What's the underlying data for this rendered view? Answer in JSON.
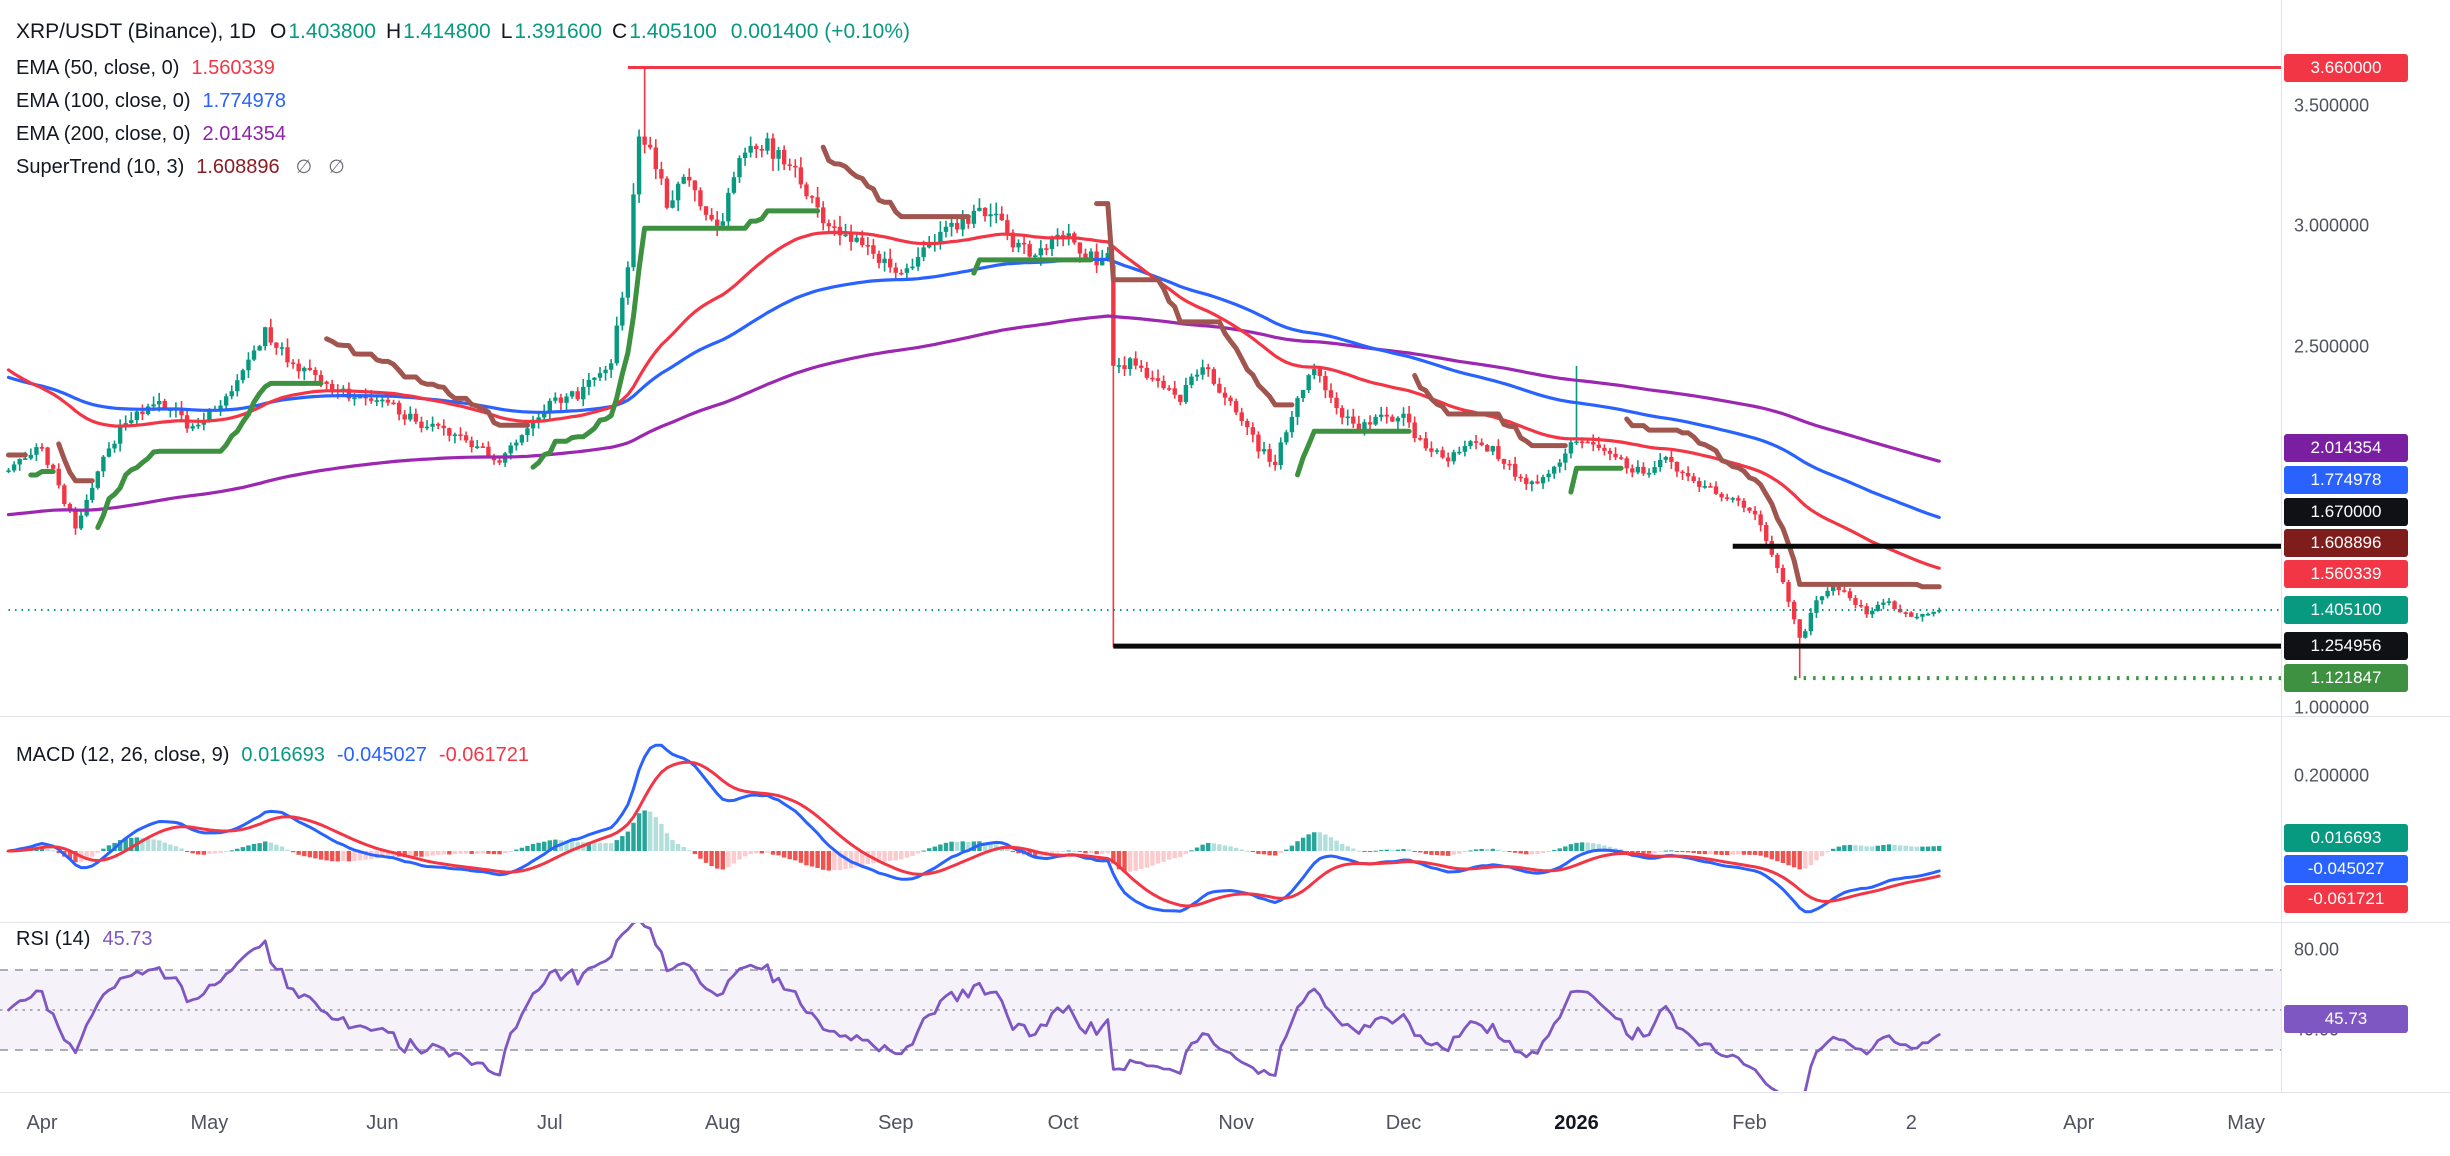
{
  "header": {
    "symbol": "XRP/USDT (Binance), 1D",
    "o_label": "O",
    "o_value": "1.403800",
    "h_label": "H",
    "h_value": "1.414800",
    "l_label": "L",
    "l_value": "1.391600",
    "c_label": "C",
    "c_value": "1.405100",
    "change": "0.001400 (+0.10%)",
    "value_color": "#089981"
  },
  "legend": [
    {
      "label": "EMA (50, close, 0)",
      "value": "1.560339",
      "color": "#f23645"
    },
    {
      "label": "EMA (100, close, 0)",
      "value": "1.774978",
      "color": "#2962ff"
    },
    {
      "label": "EMA (200, close, 0)",
      "value": "2.014354",
      "color": "#8e24aa"
    },
    {
      "label": "SuperTrend (10, 3)",
      "value": "1.608896",
      "color": "#8b1d24",
      "icons": [
        "∅",
        "∅"
      ]
    }
  ],
  "macd_header": {
    "label": "MACD (12, 26, close, 9)",
    "values": [
      "0.016693",
      "-0.045027",
      "-0.061721"
    ],
    "colors": [
      "#089981",
      "#2962ff",
      "#f23645"
    ]
  },
  "rsi_header": {
    "label": "RSI (14)",
    "value": "45.73",
    "color": "#7e57c2"
  },
  "axis": {
    "price_labels": [
      "3.500000",
      "3.000000",
      "2.500000",
      "1.000000"
    ],
    "macd_labels": [
      "0.200000"
    ],
    "rsi_labels": [
      "80.00",
      "40.00"
    ]
  },
  "badges": {
    "price": [
      {
        "text": "3.660000",
        "bg": "#f23645"
      },
      {
        "text": "2.014354",
        "bg": "#7b1fa2"
      },
      {
        "text": "1.774978",
        "bg": "#2962ff"
      },
      {
        "text": "1.670000",
        "bg": "#101114"
      },
      {
        "text": "1.608896",
        "bg": "#7f1d1d"
      },
      {
        "text": "1.560339",
        "bg": "#f23645"
      },
      {
        "text": "1.405100",
        "bg": "#089981"
      },
      {
        "text": "1.254956",
        "bg": "#101114"
      },
      {
        "text": "1.121847",
        "bg": "#3d9140"
      }
    ],
    "macd": [
      {
        "text": "0.016693",
        "bg": "#089981"
      },
      {
        "text": "-0.045027",
        "bg": "#2962ff"
      },
      {
        "text": "-0.061721",
        "bg": "#f23645"
      }
    ],
    "rsi": [
      {
        "text": "45.73",
        "bg": "#7e57c2"
      }
    ]
  },
  "colors": {
    "up": "#089981",
    "down": "#f23645",
    "ema50": "#f23645",
    "ema100": "#2962ff",
    "ema200": "#9c27b0",
    "supertrend_down": "#a0564f",
    "supertrend_up": "#3d9140",
    "macd_line": "#2962ff",
    "signal_line": "#f23645",
    "hist_pos": "#26a69a",
    "hist_pos_faded": "#b2dfdb",
    "hist_neg": "#ef5350",
    "hist_neg_faded": "#fccbcd",
    "rsi": "#7e57c2",
    "rsi_band_line": "#9194a3",
    "last_price": "#089981"
  },
  "chart_data": {
    "type": "candlestick",
    "symbol": "XRP/USDT",
    "exchange": "Binance",
    "interval": "1D",
    "last_candle": {
      "o": 1.4038,
      "h": 1.4148,
      "l": 1.3916,
      "c": 1.4051,
      "change": 0.0014,
      "change_pct": 0.1
    },
    "y_range": [
      1.0,
      3.75
    ],
    "x_axis": {
      "labels": [
        {
          "text": "Apr",
          "day": 0
        },
        {
          "text": "May",
          "day": 30
        },
        {
          "text": "Jun",
          "day": 61
        },
        {
          "text": "Jul",
          "day": 91
        },
        {
          "text": "Aug",
          "day": 122
        },
        {
          "text": "Sep",
          "day": 153
        },
        {
          "text": "Oct",
          "day": 183
        },
        {
          "text": "Nov",
          "day": 214
        },
        {
          "text": "Dec",
          "day": 244
        },
        {
          "text": "2026",
          "day": 275,
          "bold": true
        },
        {
          "text": "Feb",
          "day": 306
        },
        {
          "text": "2",
          "day": 335
        },
        {
          "text": "Apr",
          "day": 365
        },
        {
          "text": "May",
          "day": 395
        }
      ]
    },
    "price_keyframes": [
      [
        -6,
        1.98
      ],
      [
        -3,
        2.05
      ],
      [
        0,
        2.08
      ],
      [
        3,
        1.92
      ],
      [
        6,
        1.74
      ],
      [
        10,
        1.98
      ],
      [
        14,
        2.16
      ],
      [
        21,
        2.28
      ],
      [
        27,
        2.16
      ],
      [
        33,
        2.27
      ],
      [
        40,
        2.56
      ],
      [
        44,
        2.46
      ],
      [
        49,
        2.37
      ],
      [
        55,
        2.3
      ],
      [
        61,
        2.28
      ],
      [
        68,
        2.17
      ],
      [
        75,
        2.12
      ],
      [
        82,
        2.02
      ],
      [
        88,
        2.17
      ],
      [
        91,
        2.27
      ],
      [
        97,
        2.31
      ],
      [
        102,
        2.44
      ],
      [
        105,
        2.85
      ],
      [
        107,
        3.38
      ],
      [
        109,
        3.32
      ],
      [
        112,
        3.1
      ],
      [
        115,
        3.22
      ],
      [
        118,
        3.08
      ],
      [
        121,
        2.97
      ],
      [
        125,
        3.27
      ],
      [
        130,
        3.34
      ],
      [
        135,
        3.22
      ],
      [
        140,
        3.03
      ],
      [
        145,
        2.94
      ],
      [
        150,
        2.86
      ],
      [
        155,
        2.82
      ],
      [
        160,
        2.94
      ],
      [
        165,
        3.01
      ],
      [
        170,
        3.07
      ],
      [
        174,
        2.92
      ],
      [
        178,
        2.88
      ],
      [
        183,
        2.97
      ],
      [
        188,
        2.87
      ],
      [
        191,
        2.86
      ],
      [
        192,
        2.42
      ],
      [
        196,
        2.43
      ],
      [
        200,
        2.35
      ],
      [
        204,
        2.28
      ],
      [
        208,
        2.42
      ],
      [
        211,
        2.32
      ],
      [
        214,
        2.22
      ],
      [
        218,
        2.08
      ],
      [
        221,
        2.02
      ],
      [
        225,
        2.27
      ],
      [
        228,
        2.42
      ],
      [
        232,
        2.25
      ],
      [
        236,
        2.15
      ],
      [
        240,
        2.22
      ],
      [
        244,
        2.2
      ],
      [
        248,
        2.08
      ],
      [
        252,
        2.02
      ],
      [
        256,
        2.1
      ],
      [
        260,
        2.07
      ],
      [
        264,
        1.98
      ],
      [
        268,
        1.92
      ],
      [
        272,
        2.03
      ],
      [
        275,
        2.12
      ],
      [
        279,
        2.09
      ],
      [
        283,
        2.02
      ],
      [
        287,
        1.97
      ],
      [
        291,
        2.02
      ],
      [
        295,
        1.95
      ],
      [
        299,
        1.9
      ],
      [
        303,
        1.86
      ],
      [
        307,
        1.79
      ],
      [
        310,
        1.64
      ],
      [
        313,
        1.45
      ],
      [
        315,
        1.28
      ],
      [
        318,
        1.43
      ],
      [
        321,
        1.51
      ],
      [
        324,
        1.46
      ],
      [
        327,
        1.39
      ],
      [
        330,
        1.44
      ],
      [
        333,
        1.41
      ],
      [
        336,
        1.37
      ],
      [
        340,
        1.4051
      ]
    ],
    "candle_overrides": [
      {
        "day": 108,
        "h": 3.66
      },
      {
        "day": 192,
        "o": 2.84,
        "c": 2.42,
        "l": 1.25
      },
      {
        "day": 275,
        "h": 2.42
      },
      {
        "day": 315,
        "l": 1.121847
      },
      {
        "day": 340,
        "o": 1.4038,
        "h": 1.4148,
        "l": 1.3916,
        "c": 1.4051
      }
    ],
    "levels": [
      {
        "price": 3.66,
        "from_day": 105,
        "color": "#f23645",
        "style": "solid",
        "width": 3
      },
      {
        "price": 1.67,
        "from_day": 303,
        "color": "#0a0a0a",
        "style": "solid",
        "width": 5
      },
      {
        "price": 1.254956,
        "from_day": 192,
        "color": "#0a0a0a",
        "style": "solid",
        "width": 5
      },
      {
        "price": 1.121847,
        "from_day": 314,
        "color": "#3d9140",
        "style": "dotted",
        "width": 4
      },
      {
        "price": 1.4051,
        "from_day": -6,
        "color": "#089981",
        "style": "dotted",
        "width": 2
      }
    ],
    "indicators_current": {
      "ema50": 1.560339,
      "ema100": 1.774978,
      "ema200": 2.014354,
      "supertrend": 1.608896,
      "macd_hist": 0.016693,
      "macd_line": -0.045027,
      "macd_signal": -0.061721,
      "rsi": 45.73
    },
    "rsi_band": {
      "upper": 70,
      "middle": 50,
      "lower": 30
    }
  }
}
